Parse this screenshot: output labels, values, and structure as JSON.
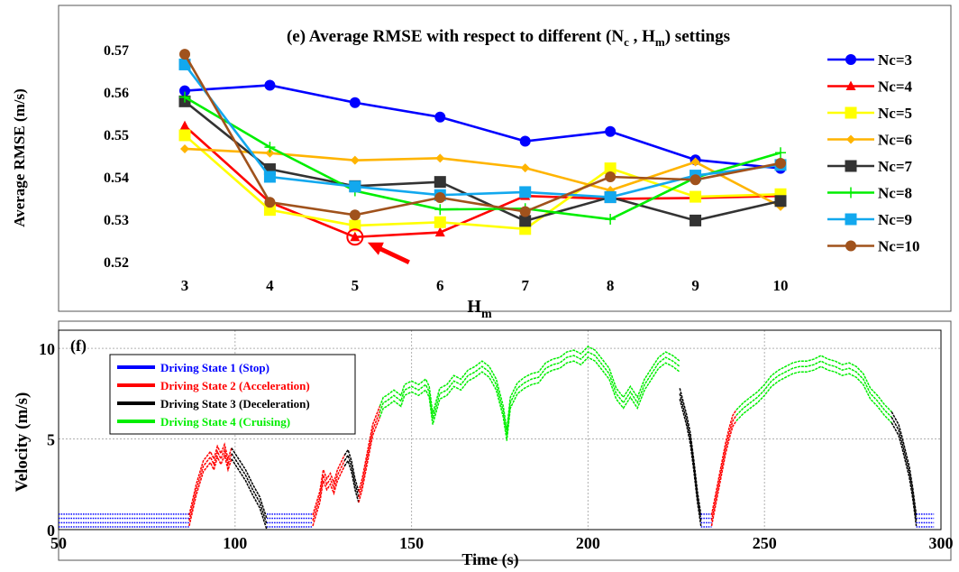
{
  "chart_data": [
    {
      "panel_label": "(e)",
      "type": "line",
      "title": "(e) Average RMSE with respect to different (N",
      "title_sub1": "c",
      "title_mid": " , H",
      "title_sub2": "m",
      "title_end": ") settings",
      "xlabel": "H",
      "xlabel_sub": "m",
      "ylabel": "Average RMSE (m/s)",
      "x": [
        3,
        4,
        5,
        6,
        7,
        8,
        9,
        10
      ],
      "x_tick_labels": [
        "3",
        "4",
        "5",
        "6",
        "7",
        "8",
        "9",
        "10"
      ],
      "ylim": [
        0.517,
        0.572
      ],
      "y_ticks": [
        0.52,
        0.53,
        0.54,
        0.55,
        0.56,
        0.57
      ],
      "y_tick_labels": [
        "0.52",
        "0.53",
        "0.54",
        "0.55",
        "0.56",
        "0.57"
      ],
      "grid": false,
      "legend_position": "right",
      "series": [
        {
          "name": "Nc=3",
          "color": "#0000ff",
          "marker": "circle",
          "values": [
            0.5603,
            0.5616,
            0.5575,
            0.5541,
            0.5484,
            0.5507,
            0.544,
            0.542
          ]
        },
        {
          "name": "Nc=4",
          "color": "#ff0000",
          "marker": "triangle",
          "values": [
            0.552,
            0.534,
            0.5258,
            0.5269,
            0.5355,
            0.5348,
            0.535,
            0.5355
          ]
        },
        {
          "name": "Nc=5",
          "color": "#ffff00",
          "marker": "square",
          "values": [
            0.5498,
            0.5322,
            0.5285,
            0.5293,
            0.5277,
            0.542,
            0.5353,
            0.5359
          ]
        },
        {
          "name": "Nc=6",
          "color": "#ffb400",
          "marker": "diamond",
          "values": [
            0.5466,
            0.5456,
            0.5439,
            0.5444,
            0.5421,
            0.5368,
            0.5435,
            0.533
          ]
        },
        {
          "name": "Nc=7",
          "color": "#333333",
          "marker": "square",
          "values": [
            0.5578,
            0.5418,
            0.5378,
            0.5388,
            0.5296,
            0.5352,
            0.5297,
            0.5343
          ]
        },
        {
          "name": "Nc=8",
          "color": "#00ee00",
          "marker": "plus",
          "values": [
            0.5588,
            0.547,
            0.5367,
            0.5323,
            0.5325,
            0.53,
            0.5398,
            0.5457
          ]
        },
        {
          "name": "Nc=9",
          "color": "#12a8ee",
          "marker": "square",
          "values": [
            0.5665,
            0.54,
            0.5377,
            0.5357,
            0.5364,
            0.5352,
            0.5403,
            0.5428
          ]
        },
        {
          "name": "Nc=10",
          "color": "#a0521c",
          "marker": "circle",
          "values": [
            0.5689,
            0.534,
            0.531,
            0.5351,
            0.5318,
            0.54,
            0.5393,
            0.5432
          ]
        }
      ],
      "annotation": {
        "type": "arrow",
        "target_series": "Nc=4",
        "target_x": 5,
        "target_y": 0.5258,
        "color": "#ff0000"
      }
    },
    {
      "panel_label": "(f)",
      "type": "line",
      "xlabel": "Time (s)",
      "ylabel": "Velocity (m/s)",
      "xlim": [
        50,
        300
      ],
      "ylim": [
        0,
        11
      ],
      "x_ticks": [
        50,
        100,
        150,
        200,
        250,
        300
      ],
      "x_tick_labels": [
        "50",
        "100",
        "150",
        "200",
        "250",
        "300"
      ],
      "y_ticks": [
        0,
        5,
        10
      ],
      "y_tick_labels": [
        "0",
        "5",
        "10"
      ],
      "grid": true,
      "legend_position": "top-left",
      "legend": [
        {
          "name": "Driving State 1 (Stop)",
          "color": "#0000ff"
        },
        {
          "name": "Driving State 2 (Acceleration)",
          "color": "#ff0000"
        },
        {
          "name": "Driving State 3 (Deceleration)",
          "color": "#000000"
        },
        {
          "name": "Driving State 4 (Cruising)",
          "color": "#00ee00"
        }
      ],
      "segments": [
        {
          "state": 1,
          "x": [
            50,
            87
          ],
          "y": [
            0.5,
            0.5
          ]
        },
        {
          "state": 2,
          "x": [
            87,
            89,
            91,
            93,
            94,
            95,
            96,
            97,
            98,
            99
          ],
          "y": [
            0.5,
            2.2,
            3.5,
            4.0,
            3.6,
            4.3,
            3.9,
            4.4,
            3.6,
            4.2
          ]
        },
        {
          "state": 3,
          "x": [
            99,
            101,
            103,
            105,
            107,
            109
          ],
          "y": [
            4.2,
            3.6,
            3.0,
            2.2,
            1.5,
            0.3
          ]
        },
        {
          "state": 1,
          "x": [
            109,
            122
          ],
          "y": [
            0.5,
            0.5
          ]
        },
        {
          "state": 2,
          "x": [
            122,
            124,
            125,
            126,
            127,
            128,
            129,
            130,
            131
          ],
          "y": [
            0.5,
            1.8,
            3.0,
            2.5,
            2.8,
            2.3,
            3.0,
            3.4,
            3.8
          ]
        },
        {
          "state": 3,
          "x": [
            131,
            132,
            133,
            134,
            135
          ],
          "y": [
            3.8,
            4.1,
            3.5,
            2.5,
            1.8
          ]
        },
        {
          "state": 2,
          "x": [
            135,
            136,
            137,
            138,
            139,
            140,
            141
          ],
          "y": [
            1.8,
            2.5,
            3.5,
            4.5,
            5.5,
            6.0,
            6.5
          ]
        },
        {
          "state": 4,
          "x": [
            141,
            142,
            143,
            145,
            147,
            148,
            150,
            152,
            154,
            155,
            156,
            158,
            160,
            162,
            164,
            166,
            168,
            170,
            172,
            174,
            176,
            177,
            178,
            180,
            182,
            184,
            186,
            188,
            190,
            192,
            194,
            196,
            198,
            200,
            202,
            204,
            206,
            208,
            210,
            212,
            214,
            216,
            218,
            220,
            222,
            224,
            226
          ],
          "y": [
            6.5,
            7.0,
            7.1,
            7.4,
            7.1,
            7.7,
            7.9,
            7.7,
            8.0,
            7.6,
            6.1,
            7.5,
            7.7,
            8.2,
            8.0,
            8.5,
            8.7,
            9.0,
            8.7,
            8.0,
            6.5,
            5.2,
            7.0,
            7.8,
            8.1,
            8.3,
            8.4,
            8.9,
            9.1,
            9.2,
            9.5,
            9.6,
            9.4,
            9.8,
            9.6,
            9.1,
            8.6,
            7.5,
            7.0,
            7.6,
            7.0,
            8.0,
            8.6,
            9.2,
            9.5,
            9.3,
            9.0
          ]
        },
        {
          "state": 3,
          "x": [
            226,
            228,
            229,
            230,
            231,
            232
          ],
          "y": [
            7.5,
            6.0,
            5.0,
            3.5,
            1.8,
            0.5
          ]
        },
        {
          "state": 1,
          "x": [
            232,
            235
          ],
          "y": [
            0.5,
            0.5
          ]
        },
        {
          "state": 2,
          "x": [
            235,
            236,
            237,
            238,
            239,
            240,
            241,
            242
          ],
          "y": [
            0.5,
            1.5,
            2.5,
            3.5,
            4.5,
            5.3,
            6.0,
            6.3
          ]
        },
        {
          "state": 4,
          "x": [
            242,
            244,
            246,
            248,
            250,
            252,
            254,
            256,
            258,
            260,
            262,
            264,
            266,
            268,
            270,
            272,
            274,
            276,
            278,
            280,
            282,
            284,
            286
          ],
          "y": [
            6.3,
            6.7,
            7.0,
            7.3,
            7.7,
            8.2,
            8.5,
            8.7,
            8.9,
            9.0,
            9.0,
            9.1,
            9.3,
            9.1,
            9.0,
            8.8,
            8.9,
            8.7,
            8.3,
            7.5,
            7.1,
            6.6,
            6.2
          ]
        },
        {
          "state": 3,
          "x": [
            286,
            288,
            289,
            290,
            291,
            292,
            293
          ],
          "y": [
            6.2,
            5.5,
            4.8,
            4.0,
            3.2,
            2.0,
            0.5
          ]
        },
        {
          "state": 1,
          "x": [
            293,
            298
          ],
          "y": [
            0.5,
            0.5
          ]
        }
      ]
    }
  ]
}
